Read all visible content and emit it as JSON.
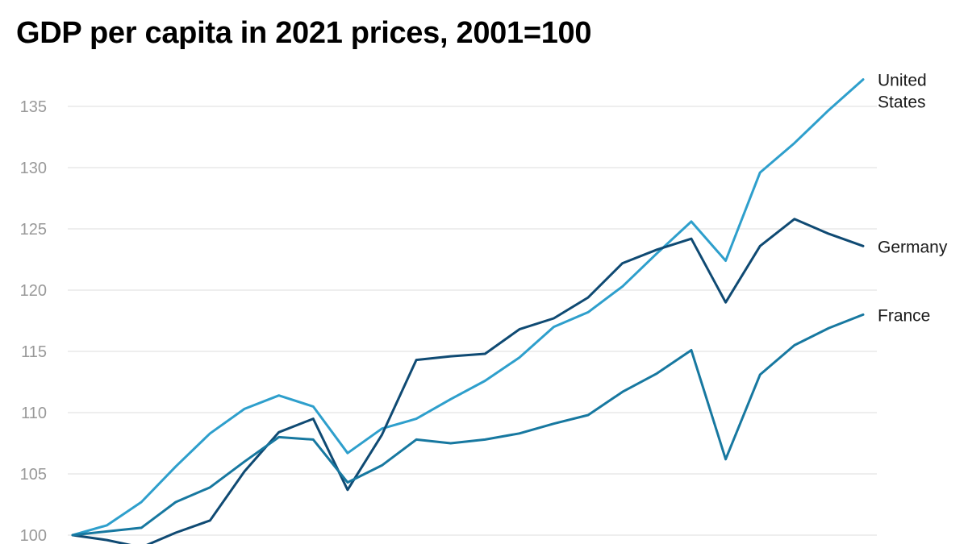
{
  "chart_data": {
    "type": "line",
    "title": "GDP per capita in 2021 prices, 2001=100",
    "xlabel": "",
    "ylabel": "",
    "ylim": [
      100,
      138
    ],
    "yticks": [
      100,
      105,
      110,
      115,
      120,
      125,
      130,
      135
    ],
    "grid": true,
    "legend": "end-of-line labels",
    "series": [
      {
        "name": "United States",
        "label_lines": [
          "United",
          "States"
        ],
        "color": "#2e9fcc",
        "values": [
          100,
          100.8,
          102.7,
          105.6,
          108.3,
          110.3,
          111.4,
          110.5,
          106.7,
          108.7,
          109.5,
          111.1,
          112.6,
          114.5,
          117.0,
          118.2,
          120.3,
          123.0,
          125.6,
          122.4,
          129.6,
          132.0,
          134.7,
          137.2
        ]
      },
      {
        "name": "Germany",
        "label_lines": [
          "Germany"
        ],
        "color": "#0f4a73",
        "values": [
          100,
          99.6,
          99.0,
          100.2,
          101.2,
          105.2,
          108.4,
          109.5,
          103.7,
          108.2,
          114.3,
          114.6,
          114.8,
          116.8,
          117.7,
          119.4,
          122.2,
          123.3,
          124.2,
          119.0,
          123.6,
          125.8,
          124.6,
          123.6
        ]
      },
      {
        "name": "France",
        "label_lines": [
          "France"
        ],
        "color": "#1778a0",
        "values": [
          100,
          100.3,
          100.6,
          102.7,
          103.9,
          106.0,
          108.0,
          107.8,
          104.3,
          105.7,
          107.8,
          107.5,
          107.8,
          108.3,
          109.1,
          109.8,
          111.7,
          113.2,
          115.1,
          106.2,
          113.1,
          115.5,
          116.9,
          118.0
        ]
      }
    ]
  }
}
